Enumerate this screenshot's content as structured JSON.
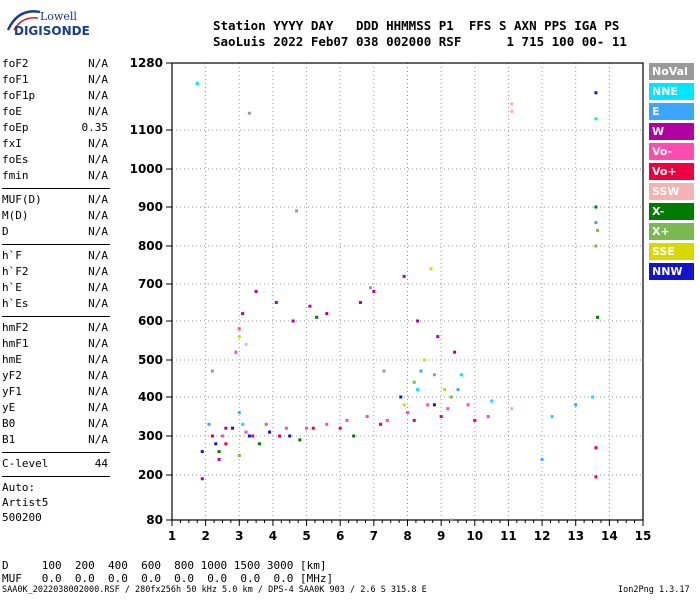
{
  "logo": {
    "line1": "Lowell",
    "line2": "DIGISONDE"
  },
  "header": {
    "row1": "Station YYYY DAY   DDD HHMMSS P1  FFS S AXN PPS IGA PS",
    "row2": "SaoLuis 2022 Feb07 038 002000 RSF      1 715 100 00- 11"
  },
  "params": {
    "group1": [
      {
        "name": "foF2",
        "value": "N/A"
      },
      {
        "name": "foF1",
        "value": "N/A"
      },
      {
        "name": "foF1p",
        "value": "N/A"
      },
      {
        "name": "foE",
        "value": "N/A"
      },
      {
        "name": "foEp",
        "value": "0.35"
      },
      {
        "name": "fxI",
        "value": "N/A"
      },
      {
        "name": "foEs",
        "value": "N/A"
      },
      {
        "name": "fmin",
        "value": "N/A"
      }
    ],
    "group2": [
      {
        "name": "MUF(D)",
        "value": "N/A"
      },
      {
        "name": "M(D)",
        "value": "N/A"
      },
      {
        "name": "D",
        "value": "N/A"
      }
    ],
    "group3": [
      {
        "name": "h`F",
        "value": "N/A"
      },
      {
        "name": "h`F2",
        "value": "N/A"
      },
      {
        "name": "h`E",
        "value": "N/A"
      },
      {
        "name": "h`Es",
        "value": "N/A"
      }
    ],
    "group4": [
      {
        "name": "hmF2",
        "value": "N/A"
      },
      {
        "name": "hmF1",
        "value": "N/A"
      },
      {
        "name": "hmE",
        "value": "N/A"
      },
      {
        "name": "yF2",
        "value": "N/A"
      },
      {
        "name": "yF1",
        "value": "N/A"
      },
      {
        "name": "yE",
        "value": "N/A"
      },
      {
        "name": "B0",
        "value": "N/A"
      },
      {
        "name": "B1",
        "value": "N/A"
      }
    ],
    "clevel": {
      "name": "C-level",
      "value": "44"
    },
    "auto": [
      "Auto:",
      "Artist5",
      "500200"
    ]
  },
  "legend": [
    {
      "label": "NoVal",
      "color": "#9a9a9a"
    },
    {
      "label": "NNE",
      "color": "#00e6ff"
    },
    {
      "label": "E",
      "color": "#3aa6ff"
    },
    {
      "label": "W",
      "color": "#b000a0"
    },
    {
      "label": "Vo-",
      "color": "#ff4ab0"
    },
    {
      "label": "Vo+",
      "color": "#ee0040"
    },
    {
      "label": "SSW",
      "color": "#f5b2b2"
    },
    {
      "label": "X-",
      "color": "#007a00"
    },
    {
      "label": "X+",
      "color": "#7ab850"
    },
    {
      "label": "SSE",
      "color": "#d8d800"
    },
    {
      "label": "NNW",
      "color": "#1414cc"
    }
  ],
  "dtable": {
    "row1": "D     100  200  400  600  800 1000 1500 3000 [km]",
    "row2": "MUF   0.0  0.0  0.0  0.0  0.0  0.0  0.0  0.0 [MHz]"
  },
  "footer": {
    "left": "SAA0K_2022038002000.RSF / 280fx256h 50 kHz 5.0 km / DPS-4 SAA0K 903 / 2.6 S 315.8 E",
    "right": "Ion2Png 1.3.17"
  },
  "chart_data": {
    "type": "scatter",
    "x_ticks": [
      "1",
      "2",
      "3",
      "4",
      "5",
      "6",
      "7",
      "8",
      "9",
      "10",
      "11",
      "12",
      "13",
      "14",
      "15"
    ],
    "y_ticks": [
      "80",
      "200",
      "300",
      "400",
      "500",
      "600",
      "700",
      "800",
      "900",
      "1000",
      "1100",
      "1280"
    ],
    "xlim": [
      1,
      15
    ],
    "ylim": [
      80,
      1280
    ],
    "grid": true,
    "legend_placement": "right",
    "series": [
      {
        "name": "W",
        "color": "#b000a0",
        "points": [
          [
            2.2,
            300
          ],
          [
            2.6,
            320
          ],
          [
            3.1,
            620
          ],
          [
            3.5,
            680
          ],
          [
            4.1,
            650
          ],
          [
            4.6,
            600
          ],
          [
            5.1,
            640
          ],
          [
            5.6,
            620
          ],
          [
            6.6,
            650
          ],
          [
            7.0,
            680
          ],
          [
            7.9,
            720
          ],
          [
            8.3,
            600
          ],
          [
            8.9,
            560
          ],
          [
            9.4,
            520
          ],
          [
            2.4,
            240
          ],
          [
            1.9,
            190
          ]
        ]
      },
      {
        "name": "Vo-",
        "color": "#ff4ab0",
        "points": [
          [
            2.5,
            300
          ],
          [
            3.2,
            310
          ],
          [
            3.8,
            330
          ],
          [
            4.4,
            320
          ],
          [
            5.0,
            320
          ],
          [
            5.6,
            330
          ],
          [
            6.2,
            340
          ],
          [
            6.8,
            350
          ],
          [
            7.4,
            340
          ],
          [
            8.0,
            360
          ],
          [
            8.6,
            380
          ],
          [
            9.2,
            370
          ],
          [
            9.8,
            380
          ],
          [
            10.4,
            350
          ],
          [
            3.0,
            580
          ],
          [
            2.9,
            520
          ]
        ]
      },
      {
        "name": "Vo+",
        "color": "#ee0040",
        "points": [
          [
            2.6,
            280
          ],
          [
            3.4,
            300
          ],
          [
            4.2,
            300
          ],
          [
            5.2,
            320
          ],
          [
            6.0,
            320
          ],
          [
            7.2,
            330
          ],
          [
            8.2,
            340
          ],
          [
            9.0,
            350
          ],
          [
            10.0,
            340
          ],
          [
            13.6,
            270
          ],
          [
            13.6,
            195
          ]
        ]
      },
      {
        "name": "NNW",
        "color": "#1414cc",
        "points": [
          [
            1.9,
            260
          ],
          [
            2.3,
            280
          ],
          [
            2.8,
            320
          ],
          [
            3.3,
            300
          ],
          [
            3.9,
            310
          ],
          [
            4.5,
            300
          ],
          [
            7.8,
            400
          ],
          [
            8.8,
            380
          ],
          [
            13.6,
            1200
          ]
        ]
      },
      {
        "name": "NNE",
        "color": "#00e6ff",
        "points": [
          [
            1.75,
            1225
          ],
          [
            3.1,
            330
          ],
          [
            8.3,
            420
          ],
          [
            9.6,
            460
          ],
          [
            10.5,
            390
          ],
          [
            13.6,
            1130
          ],
          [
            13.5,
            400
          ],
          [
            12.3,
            350
          ]
        ]
      },
      {
        "name": "E",
        "color": "#3aa6ff",
        "points": [
          [
            2.1,
            330
          ],
          [
            3.0,
            360
          ],
          [
            8.4,
            470
          ],
          [
            9.5,
            420
          ],
          [
            12.0,
            240
          ],
          [
            13.6,
            860
          ],
          [
            13.0,
            380
          ]
        ]
      },
      {
        "name": "X-",
        "color": "#007a00",
        "points": [
          [
            2.4,
            260
          ],
          [
            3.6,
            280
          ],
          [
            4.8,
            290
          ],
          [
            5.3,
            610
          ],
          [
            6.4,
            300
          ],
          [
            13.65,
            610
          ],
          [
            13.6,
            900
          ]
        ]
      },
      {
        "name": "X+",
        "color": "#7ab850",
        "points": [
          [
            3.0,
            250
          ],
          [
            8.2,
            440
          ],
          [
            8.8,
            460
          ],
          [
            9.3,
            400
          ],
          [
            13.6,
            800
          ],
          [
            13.65,
            840
          ]
        ]
      },
      {
        "name": "SSE",
        "color": "#d8d800",
        "points": [
          [
            7.9,
            380
          ],
          [
            8.5,
            500
          ],
          [
            8.7,
            740
          ],
          [
            3.0,
            560
          ],
          [
            9.1,
            420
          ]
        ]
      },
      {
        "name": "SSW",
        "color": "#f5b2b2",
        "points": [
          [
            11.1,
            1150
          ],
          [
            11.1,
            1170
          ],
          [
            11.1,
            370
          ],
          [
            3.2,
            540
          ]
        ]
      },
      {
        "name": "NoVal",
        "color": "#9a9a9a",
        "points": [
          [
            3.3,
            1145
          ],
          [
            4.7,
            890
          ],
          [
            6.9,
            690
          ],
          [
            7.3,
            470
          ],
          [
            9.3,
            80
          ],
          [
            2.2,
            470
          ]
        ]
      }
    ]
  }
}
